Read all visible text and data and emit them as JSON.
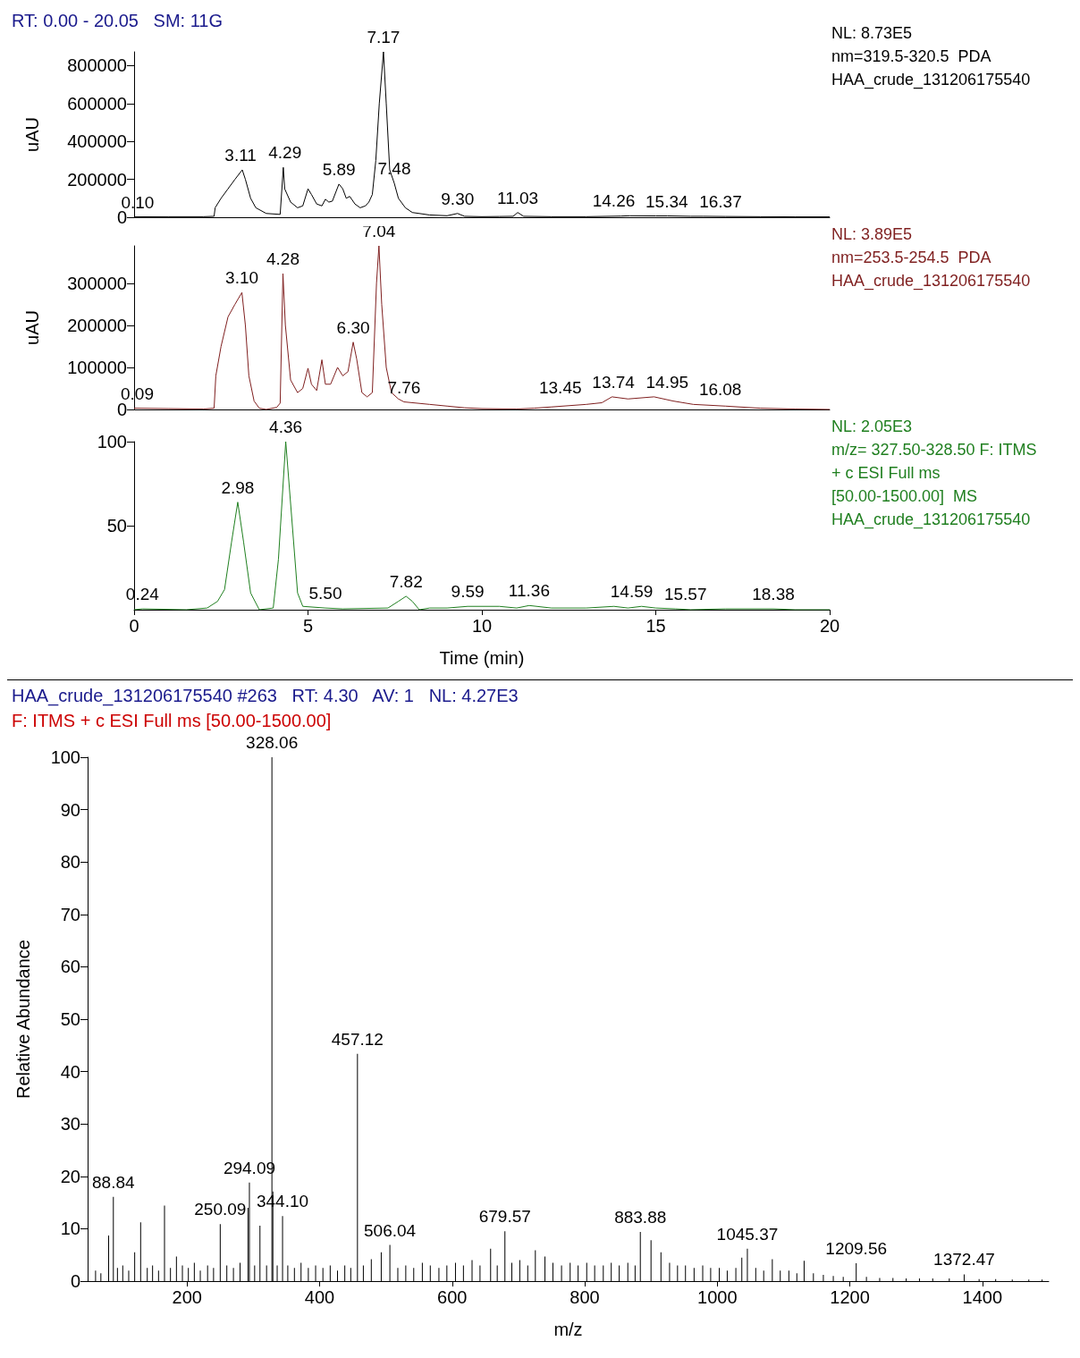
{
  "chart_data": [
    {
      "type": "line",
      "title": "RT: 0.00 - 20.05   SM: 11G",
      "ylabel": "uAU",
      "xlim": [
        0,
        20
      ],
      "ylim": [
        0,
        873000
      ],
      "yticks": [
        0,
        200000,
        400000,
        600000,
        800000
      ],
      "tick_labels": "y",
      "grid": false,
      "series": [
        {
          "color": "#000000",
          "x": [
            0,
            1,
            2,
            2.3,
            2.33,
            2.5,
            2.7,
            2.9,
            3.11,
            3.2,
            3.35,
            3.5,
            3.8,
            4.2,
            4.29,
            4.33,
            4.5,
            4.7,
            4.85,
            5.0,
            5.1,
            5.25,
            5.4,
            5.5,
            5.6,
            5.7,
            5.89,
            6.0,
            6.1,
            6.2,
            6.35,
            6.5,
            6.65,
            6.75,
            6.85,
            6.95,
            7.05,
            7.17,
            7.25,
            7.35,
            7.48,
            7.6,
            7.8,
            8.0,
            8.5,
            9.0,
            9.3,
            9.5,
            10,
            10.5,
            10.9,
            11.03,
            11.2,
            12,
            13,
            14,
            14.26,
            15,
            15.34,
            16,
            16.37,
            17,
            18,
            19,
            20
          ],
          "values": [
            2000,
            3000,
            3000,
            5000,
            50000,
            100000,
            150000,
            200000,
            250000,
            200000,
            100000,
            50000,
            20000,
            15000,
            263000,
            150000,
            80000,
            50000,
            60000,
            150000,
            120000,
            70000,
            60000,
            95000,
            80000,
            85000,
            175000,
            150000,
            100000,
            110000,
            70000,
            50000,
            60000,
            80000,
            120000,
            300000,
            600000,
            873000,
            600000,
            250000,
            180000,
            100000,
            50000,
            25000,
            12000,
            8000,
            20000,
            5000,
            3000,
            4000,
            5000,
            25000,
            5000,
            3000,
            3000,
            6000,
            8000,
            7000,
            7000,
            5000,
            5000,
            4000,
            3000,
            2000,
            2000
          ]
        }
      ],
      "annotations": [
        "NL: 8.73E5",
        "nm=319.5-320.5  PDA",
        "HAA_crude_131206175540",
        {
          "text": "0.10",
          "x": 0.1,
          "y": 2000
        },
        {
          "text": "3.11",
          "x": 3.11,
          "y": 250000
        },
        {
          "text": "4.29",
          "x": 4.29,
          "y": 263000
        },
        {
          "text": "5.89",
          "x": 5.89,
          "y": 175000
        },
        {
          "text": "7.17",
          "x": 7.17,
          "y": 873000
        },
        {
          "text": "7.48",
          "x": 7.48,
          "y": 180000
        },
        {
          "text": "9.30",
          "x": 9.3,
          "y": 20000
        },
        {
          "text": "11.03",
          "x": 11.03,
          "y": 25000
        },
        {
          "text": "14.26",
          "x": 14.26,
          "y": 8000
        },
        {
          "text": "15.34",
          "x": 15.34,
          "y": 7000
        },
        {
          "text": "16.37",
          "x": 16.37,
          "y": 5000
        }
      ]
    },
    {
      "type": "line",
      "ylabel": "uAU",
      "xlim": [
        0,
        20
      ],
      "ylim": [
        0,
        389000
      ],
      "yticks": [
        0,
        100000,
        200000,
        300000
      ],
      "tick_labels": "y",
      "grid": false,
      "series": [
        {
          "color": "#7f1f1f",
          "x": [
            0,
            1,
            2,
            2.3,
            2.35,
            2.5,
            2.7,
            2.9,
            3.1,
            3.2,
            3.3,
            3.45,
            3.6,
            3.8,
            4.1,
            4.2,
            4.28,
            4.35,
            4.5,
            4.7,
            4.85,
            5.0,
            5.1,
            5.25,
            5.4,
            5.5,
            5.65,
            5.85,
            6.0,
            6.15,
            6.3,
            6.4,
            6.55,
            6.7,
            6.85,
            6.97,
            7.04,
            7.12,
            7.25,
            7.4,
            7.6,
            7.76,
            8.5,
            9,
            9.5,
            10,
            11,
            11.5,
            12,
            13,
            13.45,
            13.74,
            14.2,
            14.95,
            15.5,
            16.08,
            17,
            18,
            19,
            20
          ],
          "values": [
            3000,
            2000,
            1000,
            3000,
            80000,
            150000,
            220000,
            250000,
            278000,
            200000,
            80000,
            20000,
            3000,
            0,
            5000,
            15000,
            323000,
            200000,
            70000,
            40000,
            50000,
            98000,
            60000,
            45000,
            118000,
            60000,
            60000,
            100000,
            80000,
            90000,
            160000,
            120000,
            40000,
            30000,
            40000,
            300000,
            389000,
            250000,
            100000,
            40000,
            25000,
            18000,
            12000,
            8000,
            4000,
            2000,
            1000,
            3000,
            6000,
            12000,
            16000,
            30000,
            25000,
            30000,
            20000,
            12000,
            8000,
            3000,
            1000,
            0
          ]
        }
      ],
      "annotations": [
        "NL: 3.89E5",
        "nm=253.5-254.5  PDA",
        "HAA_crude_131206175540",
        {
          "text": "0.09",
          "x": 0.09,
          "y": 3000
        },
        {
          "text": "3.10",
          "x": 3.1,
          "y": 278000
        },
        {
          "text": "4.28",
          "x": 4.28,
          "y": 323000
        },
        {
          "text": "6.30",
          "x": 6.3,
          "y": 160000
        },
        {
          "text": "7.04",
          "x": 7.04,
          "y": 389000
        },
        {
          "text": "7.76",
          "x": 7.76,
          "y": 18000
        },
        {
          "text": "13.45",
          "x": 13.45,
          "y": 16000
        },
        {
          "text": "13.74",
          "x": 13.74,
          "y": 30000
        },
        {
          "text": "14.95",
          "x": 14.95,
          "y": 30000
        },
        {
          "text": "16.08",
          "x": 16.08,
          "y": 12000
        }
      ]
    },
    {
      "type": "line",
      "xlabel": "Time (min)",
      "xlim": [
        0,
        20
      ],
      "xticks": [
        0,
        5,
        10,
        15,
        20
      ],
      "ylim": [
        0,
        100
      ],
      "yticks": [
        50,
        100
      ],
      "grid": false,
      "series": [
        {
          "color": "#1f7f1f",
          "x": [
            0,
            0.24,
            1.5,
            2.1,
            2.4,
            2.6,
            2.8,
            2.98,
            3.15,
            3.35,
            3.6,
            4.0,
            4.15,
            4.36,
            4.55,
            4.7,
            4.85,
            5.5,
            6,
            7.3,
            7.6,
            7.82,
            8.0,
            8.2,
            8.5,
            9.0,
            9.59,
            10.5,
            11,
            11.36,
            12,
            13,
            13.8,
            14.2,
            14.59,
            15,
            15.57,
            16,
            17,
            18.38,
            19,
            20
          ],
          "values": [
            0,
            0.5,
            0,
            1,
            5,
            12,
            40,
            64,
            40,
            10,
            0,
            1,
            30,
            100,
            50,
            10,
            2,
            1,
            0.5,
            1,
            5,
            8,
            5,
            0,
            1,
            1,
            2,
            2,
            1,
            2.5,
            1,
            1,
            2,
            1,
            2,
            1,
            0.5,
            0,
            0.5,
            0.5,
            0,
            0
          ]
        }
      ],
      "annotations": [
        "NL: 2.05E3",
        "m/z= 327.50-328.50 F: ITMS",
        "+ c ESI Full ms",
        "[50.00-1500.00]  MS",
        "HAA_crude_131206175540",
        {
          "text": "0.24",
          "x": 0.24,
          "y": 0.5
        },
        {
          "text": "2.98",
          "x": 2.98,
          "y": 64
        },
        {
          "text": "4.36",
          "x": 4.36,
          "y": 100
        },
        {
          "text": "5.50",
          "x": 5.5,
          "y": 1
        },
        {
          "text": "7.82",
          "x": 7.82,
          "y": 8
        },
        {
          "text": "9.59",
          "x": 9.59,
          "y": 2
        },
        {
          "text": "11.36",
          "x": 11.36,
          "y": 2.5
        },
        {
          "text": "14.59",
          "x": 14.59,
          "y": 2
        },
        {
          "text": "15.57",
          "x": 15.57,
          "y": 0.5
        },
        {
          "text": "18.38",
          "x": 18.38,
          "y": 0.5
        }
      ]
    },
    {
      "type": "bar",
      "title": "HAA_crude_131206175540 #263   RT: 4.30   AV: 1   NL: 4.27E3",
      "subtitle": "F: ITMS + c ESI Full ms [50.00-1500.00]",
      "xlabel": "m/z",
      "ylabel": "Relative Abundance",
      "xlim": [
        50,
        1500
      ],
      "xticks": [
        200,
        400,
        600,
        800,
        1000,
        1200,
        1400
      ],
      "ylim": [
        0,
        100
      ],
      "yticks": [
        0,
        10,
        20,
        30,
        40,
        50,
        60,
        70,
        80,
        90,
        100
      ],
      "grid": false,
      "series": [
        {
          "color": "#000000",
          "x": [
            62,
            70,
            81.7,
            88.84,
            95,
            103,
            112,
            121,
            130,
            140,
            148,
            157,
            166,
            175,
            184,
            193,
            202,
            211,
            220,
            231,
            240,
            250.09,
            260,
            270,
            280,
            292,
            294.09,
            302,
            310,
            320,
            328.06,
            329.5,
            336,
            344.1,
            352,
            362,
            372,
            383,
            394,
            405,
            416,
            427,
            438,
            447,
            457.12,
            466,
            478,
            493,
            506.04,
            518,
            530,
            542,
            555,
            567,
            580,
            592,
            605,
            617,
            630,
            642,
            658,
            668,
            679.57,
            690,
            702,
            714,
            725.5,
            740,
            752,
            765,
            778,
            790,
            803,
            815,
            828,
            840,
            852,
            865,
            876,
            883.88,
            900,
            915,
            928,
            940,
            952,
            965,
            978,
            990,
            1003,
            1015,
            1028,
            1037,
            1045.37,
            1058,
            1070,
            1083,
            1095,
            1108,
            1120,
            1131,
            1145,
            1160,
            1175,
            1190,
            1209.56,
            1225,
            1245,
            1265,
            1285,
            1305,
            1325,
            1350,
            1372.47,
            1395,
            1420,
            1445,
            1470,
            1490
          ],
          "values": [
            2,
            1.5,
            8.7,
            16.1,
            2.5,
            3,
            2,
            5.5,
            11.2,
            2.5,
            3,
            2,
            14.4,
            2.5,
            4.7,
            3,
            2.5,
            3.5,
            2,
            3,
            2.5,
            10.9,
            3,
            2.5,
            3.5,
            14,
            18.8,
            3,
            10.6,
            3,
            100,
            17.1,
            3,
            12.4,
            3,
            2.5,
            3.5,
            2.5,
            3,
            2.5,
            3,
            2,
            3,
            2.5,
            43.4,
            3,
            4.2,
            5.5,
            6.9,
            2.5,
            3,
            2.5,
            3.5,
            3,
            2.5,
            3,
            3.5,
            3,
            4,
            3,
            6.2,
            3,
            9.5,
            3.5,
            4,
            3,
            5.9,
            4.7,
            3.5,
            3,
            3.5,
            3,
            3.5,
            3,
            3,
            3.5,
            3,
            3.5,
            3,
            9.4,
            7.8,
            5.5,
            3.5,
            3,
            3,
            2.5,
            3,
            2.5,
            2.5,
            2,
            2.5,
            4.5,
            6.2,
            2.5,
            2,
            4.2,
            2,
            2,
            1.5,
            3.9,
            1.5,
            1.2,
            1,
            0.8,
            3.4,
            0.8,
            0.6,
            0.6,
            0.5,
            0.5,
            0.5,
            0.5,
            1.3,
            0.4,
            0.4,
            0.3,
            0.3,
            0.3
          ]
        }
      ],
      "annotations": [
        {
          "text": "88.84",
          "x": 88.84,
          "y": 16.1
        },
        {
          "text": "250.09",
          "x": 250.09,
          "y": 10.9
        },
        {
          "text": "294.09",
          "x": 294.09,
          "y": 18.8
        },
        {
          "text": "328.06",
          "x": 328.06,
          "y": 100
        },
        {
          "text": "344.10",
          "x": 344.1,
          "y": 12.4
        },
        {
          "text": "457.12",
          "x": 457.12,
          "y": 43.4
        },
        {
          "text": "506.04",
          "x": 506.04,
          "y": 6.9
        },
        {
          "text": "679.57",
          "x": 679.57,
          "y": 9.5
        },
        {
          "text": "883.88",
          "x": 883.88,
          "y": 9.4
        },
        {
          "text": "1045.37",
          "x": 1045.37,
          "y": 6.2
        },
        {
          "text": "1209.56",
          "x": 1209.56,
          "y": 3.4
        },
        {
          "text": "1372.47",
          "x": 1372.47,
          "y": 1.3
        }
      ]
    }
  ]
}
